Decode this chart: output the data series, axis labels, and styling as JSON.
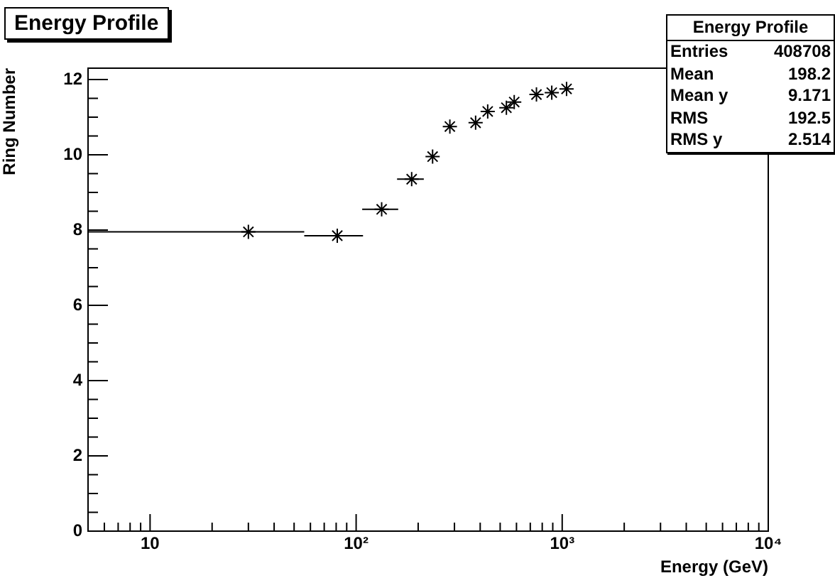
{
  "chart_data": {
    "type": "scatter",
    "title": "Energy Profile",
    "xlabel": "Energy (GeV)",
    "ylabel": "Ring Number",
    "x": [
      30,
      81,
      133,
      186,
      235,
      285,
      380,
      435,
      536,
      585,
      750,
      890,
      1050
    ],
    "values": [
      7.95,
      7.85,
      8.55,
      9.35,
      9.95,
      10.75,
      10.85,
      11.15,
      11.25,
      11.4,
      11.6,
      11.65,
      11.75
    ],
    "xerrors": [
      [
        5,
        56
      ],
      [
        56,
        108
      ],
      [
        107,
        160
      ],
      [
        158,
        213
      ],
      null,
      null,
      null,
      null,
      null,
      null,
      null,
      null,
      null
    ],
    "color": "#000000",
    "marker": "cross",
    "log": "x",
    "grid": false,
    "legend": false,
    "xlim": [
      5,
      10000
    ],
    "ylim": [
      0,
      12.3
    ],
    "xticks": [
      {
        "value": 6,
        "label": null
      },
      {
        "value": 7,
        "label": null
      },
      {
        "value": 8,
        "label": null
      },
      {
        "value": 9,
        "label": null
      },
      10,
      {
        "value": 20,
        "label": null
      },
      {
        "value": 30,
        "label": null
      },
      {
        "value": 40,
        "label": null
      },
      {
        "value": 50,
        "label": null
      },
      {
        "value": 60,
        "label": null
      },
      {
        "value": 70,
        "label": null
      },
      {
        "value": 80,
        "label": null
      },
      {
        "value": 90,
        "label": null
      },
      {
        "value": 100,
        "label": "10²"
      },
      {
        "value": 200,
        "label": null
      },
      {
        "value": 300,
        "label": null
      },
      {
        "value": 400,
        "label": null
      },
      {
        "value": 500,
        "label": null
      },
      {
        "value": 600,
        "label": null
      },
      {
        "value": 700,
        "label": null
      },
      {
        "value": 800,
        "label": null
      },
      {
        "value": 900,
        "label": null
      },
      {
        "value": 1000,
        "label": "10³"
      },
      {
        "value": 2000,
        "label": null
      },
      {
        "value": 3000,
        "label": null
      },
      {
        "value": 4000,
        "label": null
      },
      {
        "value": 5000,
        "label": null
      },
      {
        "value": 6000,
        "label": null
      },
      {
        "value": 7000,
        "label": null
      },
      {
        "value": 8000,
        "label": null
      },
      {
        "value": 9000,
        "label": null
      },
      {
        "value": 10000,
        "label": "10⁴"
      }
    ],
    "yticks": [
      0,
      {
        "value": 0.5,
        "label": null
      },
      {
        "value": 1,
        "label": null
      },
      {
        "value": 1.5,
        "label": null
      },
      2,
      {
        "value": 2.5,
        "label": null
      },
      {
        "value": 3,
        "label": null
      },
      {
        "value": 3.5,
        "label": null
      },
      4,
      {
        "value": 4.5,
        "label": null
      },
      {
        "value": 5,
        "label": null
      },
      {
        "value": 5.5,
        "label": null
      },
      6,
      {
        "value": 6.5,
        "label": null
      },
      {
        "value": 7,
        "label": null
      },
      {
        "value": 7.5,
        "label": null
      },
      8,
      {
        "value": 8.5,
        "label": null
      },
      {
        "value": 9,
        "label": null
      },
      {
        "value": 9.5,
        "label": null
      },
      10,
      {
        "value": 10.5,
        "label": null
      },
      {
        "value": 11,
        "label": null
      },
      {
        "value": 11.5,
        "label": null
      },
      12
    ],
    "annotations": [
      "Energy Profile",
      "Entries",
      "408708",
      "Mean",
      "198.2",
      "Mean y",
      "9.171",
      "RMS",
      "192.5",
      "RMS y",
      "2.514"
    ]
  }
}
